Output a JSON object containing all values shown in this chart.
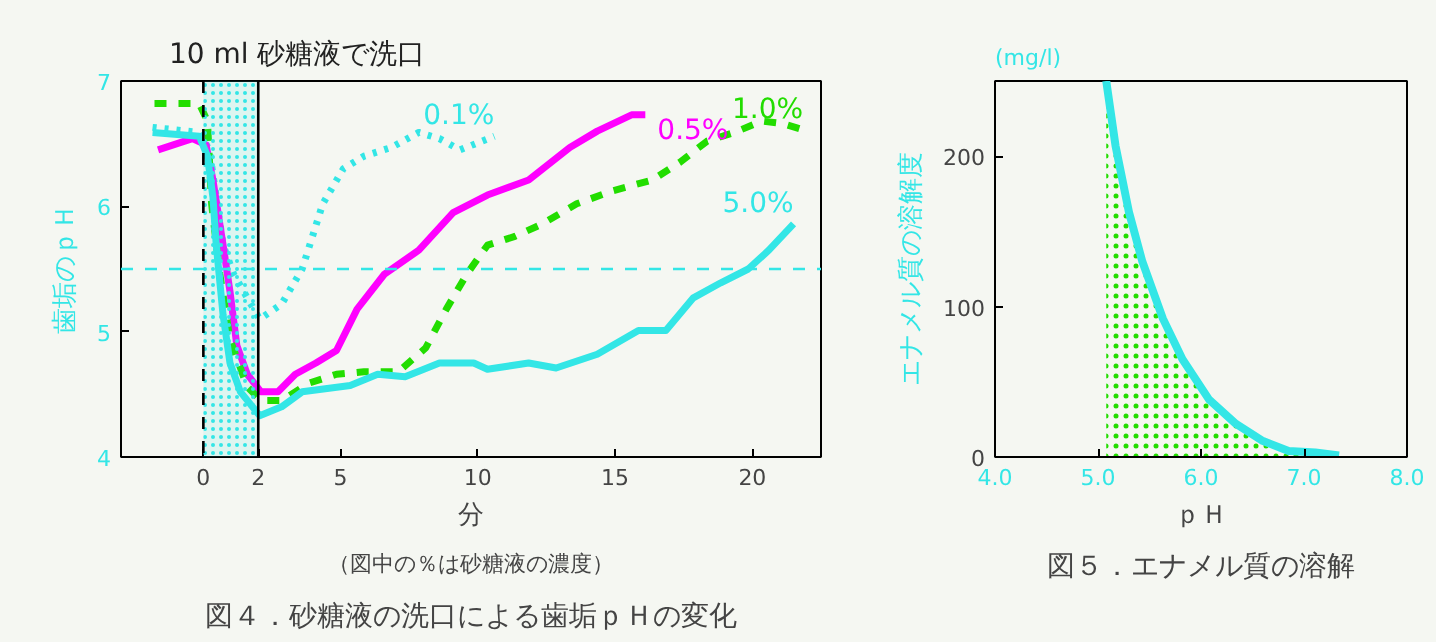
{
  "chart_data": [
    {
      "type": "line",
      "title": "図４．砂糖液の洗口による歯垢ｐＨの変化",
      "subtitle": "（図中の％は砂糖液の濃度）",
      "xlabel": "分",
      "ylabel": "歯垢のｐＨ",
      "xlim": [
        -3,
        22.5
      ],
      "ylim": [
        4,
        7
      ],
      "xticks": [
        0,
        2,
        5,
        10,
        15,
        20
      ],
      "yticks": [
        4,
        5,
        6,
        7
      ],
      "grid": false,
      "marker": "none",
      "annotations": [
        "10 ml 砂糖液で洗口"
      ],
      "bands": [
        {
          "axis": "x",
          "from": 0,
          "to": 2,
          "color": "#33e6e6"
        }
      ],
      "ref_lines": [
        {
          "axis": "x",
          "value": 0,
          "color": "#000000",
          "line_style": "dashed"
        },
        {
          "axis": "x",
          "value": 2,
          "color": "#000000",
          "line_style": "solid"
        },
        {
          "axis": "y",
          "value": 5.5,
          "color": "#33e6e6",
          "line_style": "dashed"
        }
      ],
      "series": [
        {
          "name": "0.1%",
          "color": "#33e6e6",
          "line_style": "dotted",
          "x": [
            -1.85,
            -0.15,
            0.22,
            0.47,
            0.72,
            1.1,
            1.6,
            2.05,
            2.85,
            3.6,
            4.35,
            5.1,
            5.85,
            6.85,
            7.85,
            8.6,
            9.35,
            10.6
          ],
          "values": [
            6.63,
            6.59,
            6.45,
            6.07,
            5.69,
            5.46,
            5.27,
            5.1,
            5.22,
            5.5,
            6.02,
            6.3,
            6.4,
            6.47,
            6.59,
            6.54,
            6.45,
            6.56
          ]
        },
        {
          "name": "0.5%",
          "color": "#ff00ff",
          "line_style": "solid",
          "x": [
            -1.65,
            -0.4,
            0.1,
            0.35,
            0.72,
            0.97,
            1.22,
            1.6,
            2.1,
            2.72,
            3.35,
            4.1,
            4.85,
            5.6,
            6.6,
            7.85,
            9.1,
            10.35,
            11.85,
            13.35,
            14.35,
            15.6,
            16.1
          ],
          "values": [
            6.45,
            6.54,
            6.49,
            6.21,
            5.69,
            5.32,
            4.89,
            4.66,
            4.52,
            4.52,
            4.66,
            4.75,
            4.85,
            5.18,
            5.46,
            5.65,
            5.95,
            6.09,
            6.21,
            6.47,
            6.6,
            6.73,
            6.73
          ]
        },
        {
          "name": "1.0%",
          "color": "#22dd00",
          "line_style": "dashed",
          "x": [
            -1.78,
            -0.15,
            0.15,
            0.3,
            0.6,
            0.97,
            1.6,
            2.1,
            2.85,
            3.85,
            4.85,
            5.85,
            7.1,
            8.1,
            8.85,
            9.6,
            10.35,
            11.35,
            12.35,
            13.6,
            14.85,
            16.35,
            17.35,
            18.35,
            19.35,
            20.35,
            21.1,
            21.85
          ],
          "values": [
            6.82,
            6.82,
            6.68,
            6.02,
            5.46,
            4.94,
            4.56,
            4.45,
            4.45,
            4.59,
            4.66,
            4.68,
            4.68,
            4.87,
            5.18,
            5.46,
            5.69,
            5.76,
            5.86,
            6.02,
            6.12,
            6.21,
            6.35,
            6.52,
            6.59,
            6.68,
            6.66,
            6.61
          ]
        },
        {
          "name": "5.0%",
          "color": "#33e6e6",
          "line_style": "solid",
          "x": [
            -1.85,
            -0.15,
            0.15,
            0.35,
            0.47,
            0.72,
            0.97,
            1.35,
            2.05,
            2.85,
            3.6,
            5.35,
            6.35,
            7.35,
            8.6,
            9.85,
            10.35,
            11.85,
            12.85,
            14.35,
            15.85,
            16.85,
            17.85,
            18.85,
            19.85,
            20.6,
            21.5
          ],
          "values": [
            6.59,
            6.56,
            6.4,
            6.07,
            5.69,
            5.13,
            4.75,
            4.52,
            4.33,
            4.4,
            4.52,
            4.57,
            4.66,
            4.64,
            4.75,
            4.75,
            4.7,
            4.75,
            4.71,
            4.82,
            5.01,
            5.01,
            5.27,
            5.39,
            5.5,
            5.65,
            5.86
          ]
        }
      ]
    },
    {
      "type": "area",
      "title": "図５．エナメル質の溶解",
      "xlabel": "ｐＨ",
      "ylabel": "エナメル質の溶解度",
      "annotations": [
        "(mg/l)"
      ],
      "xlim": [
        4,
        8
      ],
      "ylim": [
        0,
        250
      ],
      "xticks": [
        {
          "value": 4,
          "label": "4.0"
        },
        {
          "value": 5,
          "label": "5.0"
        },
        {
          "value": 6,
          "label": "6.0"
        },
        {
          "value": 7,
          "label": "7.0"
        },
        {
          "value": 8,
          "label": "8.0"
        }
      ],
      "yticks": [
        0,
        100,
        200
      ],
      "grid": false,
      "series": [
        {
          "color": "#33e6e6",
          "x": [
            5.08,
            5.17,
            5.3,
            5.43,
            5.63,
            5.82,
            6.08,
            6.34,
            6.59,
            6.85,
            7.11,
            7.34
          ],
          "values": [
            250,
            207,
            163,
            130,
            92,
            65,
            38,
            22,
            11,
            4,
            3,
            1
          ]
        }
      ]
    }
  ]
}
